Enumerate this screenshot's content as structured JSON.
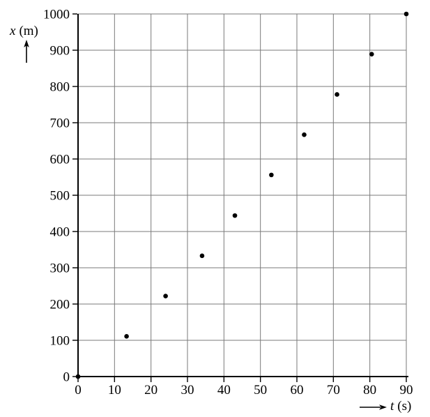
{
  "figure": {
    "y_axis": {
      "symbol": "x",
      "unit": "(m)"
    },
    "x_axis": {
      "symbol": "t",
      "unit": "(s)"
    }
  },
  "chart_data": {
    "type": "scatter",
    "title": "",
    "xlabel": "t (s)",
    "ylabel": "x (m)",
    "x": [
      0,
      13.3,
      24,
      34,
      43,
      53,
      62,
      71,
      80.5,
      90
    ],
    "y": [
      0,
      111,
      222,
      333,
      444,
      556,
      667,
      778,
      889,
      1000
    ],
    "xlim": [
      0,
      90
    ],
    "ylim": [
      0,
      1000
    ],
    "x_ticks": [
      0,
      10,
      20,
      30,
      40,
      50,
      60,
      70,
      80,
      90
    ],
    "y_ticks": [
      0,
      100,
      200,
      300,
      400,
      500,
      600,
      700,
      800,
      900,
      1000
    ],
    "grid": true,
    "legend": false,
    "marker": "filled-dot",
    "marker_radius": 3.3,
    "colors": {
      "points": "#000000",
      "grid": "#7a7a7a",
      "axis": "#000000",
      "text": "#000000",
      "background": "#ffffff"
    }
  }
}
